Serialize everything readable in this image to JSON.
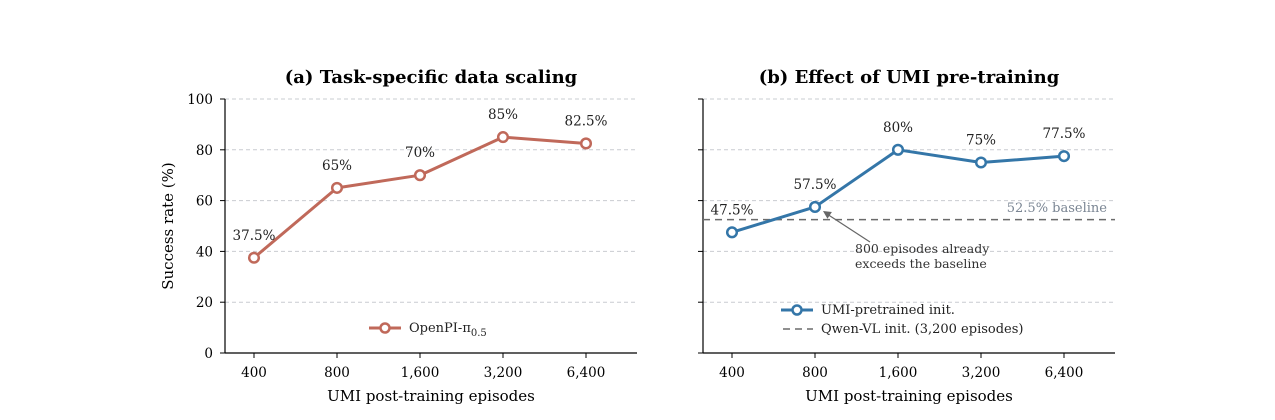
{
  "chart_data": [
    {
      "type": "line",
      "title": "(a) Task-specific data scaling",
      "xlabel": "UMI post-training episodes",
      "ylabel": "Success rate (%)",
      "categories": [
        "400",
        "800",
        "1,600",
        "3,200",
        "6,400"
      ],
      "ylim": [
        0,
        100
      ],
      "yticks": [
        "0",
        "20",
        "40",
        "60",
        "80",
        "100"
      ],
      "grid": "horizontal dashed",
      "legend_position": "bottom-center",
      "series": [
        {
          "name": "OpenPI-π0.5",
          "name_main": "OpenPI-π",
          "name_sub": "0.5",
          "color": "#c0695a",
          "values": [
            37.5,
            65,
            70,
            85,
            82.5
          ],
          "labels": [
            "37.5%",
            "65%",
            "70%",
            "85%",
            "82.5%"
          ]
        }
      ]
    },
    {
      "type": "line",
      "title": "(b) Effect of UMI pre-training",
      "xlabel": "UMI post-training episodes",
      "ylabel": "",
      "categories": [
        "400",
        "800",
        "1,600",
        "3,200",
        "6,400"
      ],
      "ylim": [
        0,
        100
      ],
      "grid": "horizontal dashed",
      "legend_position": "bottom-center",
      "series": [
        {
          "name": "UMI-pretrained init.",
          "color": "#3476a8",
          "values": [
            47.5,
            57.5,
            80,
            75,
            77.5
          ],
          "labels": [
            "47.5%",
            "57.5%",
            "80%",
            "75%",
            "77.5%"
          ]
        },
        {
          "name": "Qwen-VL init. (3,200 episodes)",
          "color": "#6b6b6b",
          "style": "dashed",
          "constant": 52.5,
          "label": "52.5% baseline"
        }
      ],
      "annotation": {
        "text_line1": "800 episodes already",
        "text_line2": "exceeds the baseline",
        "points_to_category": "800"
      }
    }
  ]
}
